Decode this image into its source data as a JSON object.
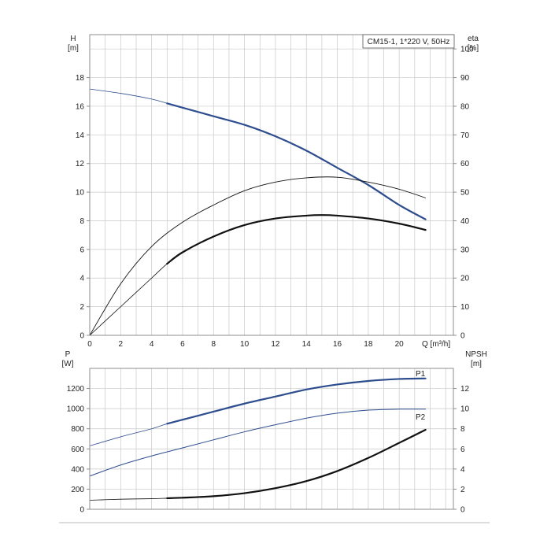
{
  "colors": {
    "grid": "#c8c8c8",
    "frame": "#8c8c8c",
    "blue": "#2e4d8f",
    "black": "#111111"
  },
  "chart_data": [
    {
      "type": "line",
      "title": "CM15-1, 1*220 V, 50Hz",
      "xlabel": "Q [m³/h]",
      "x_ticks": [
        "0",
        "2",
        "4",
        "6",
        "8",
        "10",
        "12",
        "14",
        "16",
        "18",
        "20"
      ],
      "xlim": [
        0,
        23.5
      ],
      "y_left": {
        "label": "H",
        "unit": "[m]",
        "ticks": [
          "0",
          "2",
          "4",
          "6",
          "8",
          "10",
          "12",
          "14",
          "16",
          "18"
        ],
        "lim": [
          0,
          21
        ]
      },
      "y_right": {
        "label": "eta",
        "unit": "[%]",
        "ticks": [
          "0",
          "10",
          "20",
          "30",
          "40",
          "50",
          "60",
          "70",
          "80",
          "90",
          "100"
        ],
        "lim": [
          0,
          105
        ]
      },
      "grid": true,
      "series": [
        {
          "axis": "left",
          "color": "blue",
          "width": 2.2,
          "x": [
            0,
            2,
            4,
            5,
            6,
            8,
            10,
            12,
            14,
            16,
            18,
            20,
            21.7
          ],
          "y": [
            17.2,
            16.9,
            16.5,
            16.2,
            15.9,
            15.3,
            14.7,
            13.9,
            12.9,
            11.7,
            10.5,
            9.1,
            8.1
          ],
          "solid_from": 5
        },
        {
          "axis": "right",
          "color": "black",
          "width": 0.9,
          "x": [
            0,
            2,
            4,
            6,
            8,
            10,
            12,
            14,
            16,
            18,
            20,
            21.7
          ],
          "y": [
            0,
            18,
            31,
            39.5,
            45.5,
            50.5,
            53.5,
            55,
            55.2,
            53.5,
            51,
            48
          ],
          "solid_from": 0
        },
        {
          "axis": "right",
          "color": "black",
          "width": 2.2,
          "x": [
            0,
            2,
            4,
            5,
            6,
            8,
            10,
            12,
            14,
            15,
            16,
            18,
            20,
            21.7
          ],
          "y": [
            0,
            10,
            20,
            25,
            29,
            34.5,
            38.5,
            40.8,
            41.8,
            42,
            41.8,
            40.8,
            39,
            36.8
          ],
          "solid_from": 5
        }
      ]
    },
    {
      "type": "line",
      "xlim": [
        0,
        23.5
      ],
      "y_left": {
        "label": "P",
        "unit": "[W]",
        "ticks": [
          "0",
          "200",
          "400",
          "600",
          "800",
          "1000",
          "1200"
        ],
        "lim": [
          0,
          1400
        ]
      },
      "y_right": {
        "label": "NPSH",
        "unit": "[m]",
        "ticks": [
          "0",
          "2",
          "4",
          "6",
          "8",
          "10",
          "12"
        ],
        "lim": [
          0,
          14
        ]
      },
      "grid": true,
      "series": [
        {
          "name": "P1",
          "axis": "left",
          "color": "blue",
          "width": 2.2,
          "x": [
            0,
            2,
            4,
            5,
            6,
            8,
            10,
            12,
            14,
            16,
            18,
            20,
            21.7
          ],
          "y": [
            630,
            720,
            800,
            850,
            890,
            970,
            1050,
            1120,
            1190,
            1240,
            1275,
            1295,
            1300
          ],
          "solid_from": 5
        },
        {
          "name": "P2",
          "axis": "left",
          "color": "blue",
          "width": 1.0,
          "x": [
            0,
            2,
            4,
            6,
            8,
            10,
            12,
            14,
            16,
            18,
            20,
            21.7
          ],
          "y": [
            330,
            440,
            530,
            610,
            690,
            770,
            840,
            905,
            955,
            985,
            995,
            995
          ],
          "solid_from": 0
        },
        {
          "axis": "right",
          "color": "black",
          "width": 2.2,
          "x": [
            0,
            2,
            4,
            5,
            6,
            8,
            10,
            12,
            14,
            16,
            18,
            20,
            21.7
          ],
          "y": [
            0.9,
            1.0,
            1.05,
            1.1,
            1.15,
            1.3,
            1.6,
            2.1,
            2.8,
            3.8,
            5.1,
            6.6,
            7.9
          ],
          "solid_from": 5
        }
      ]
    }
  ]
}
